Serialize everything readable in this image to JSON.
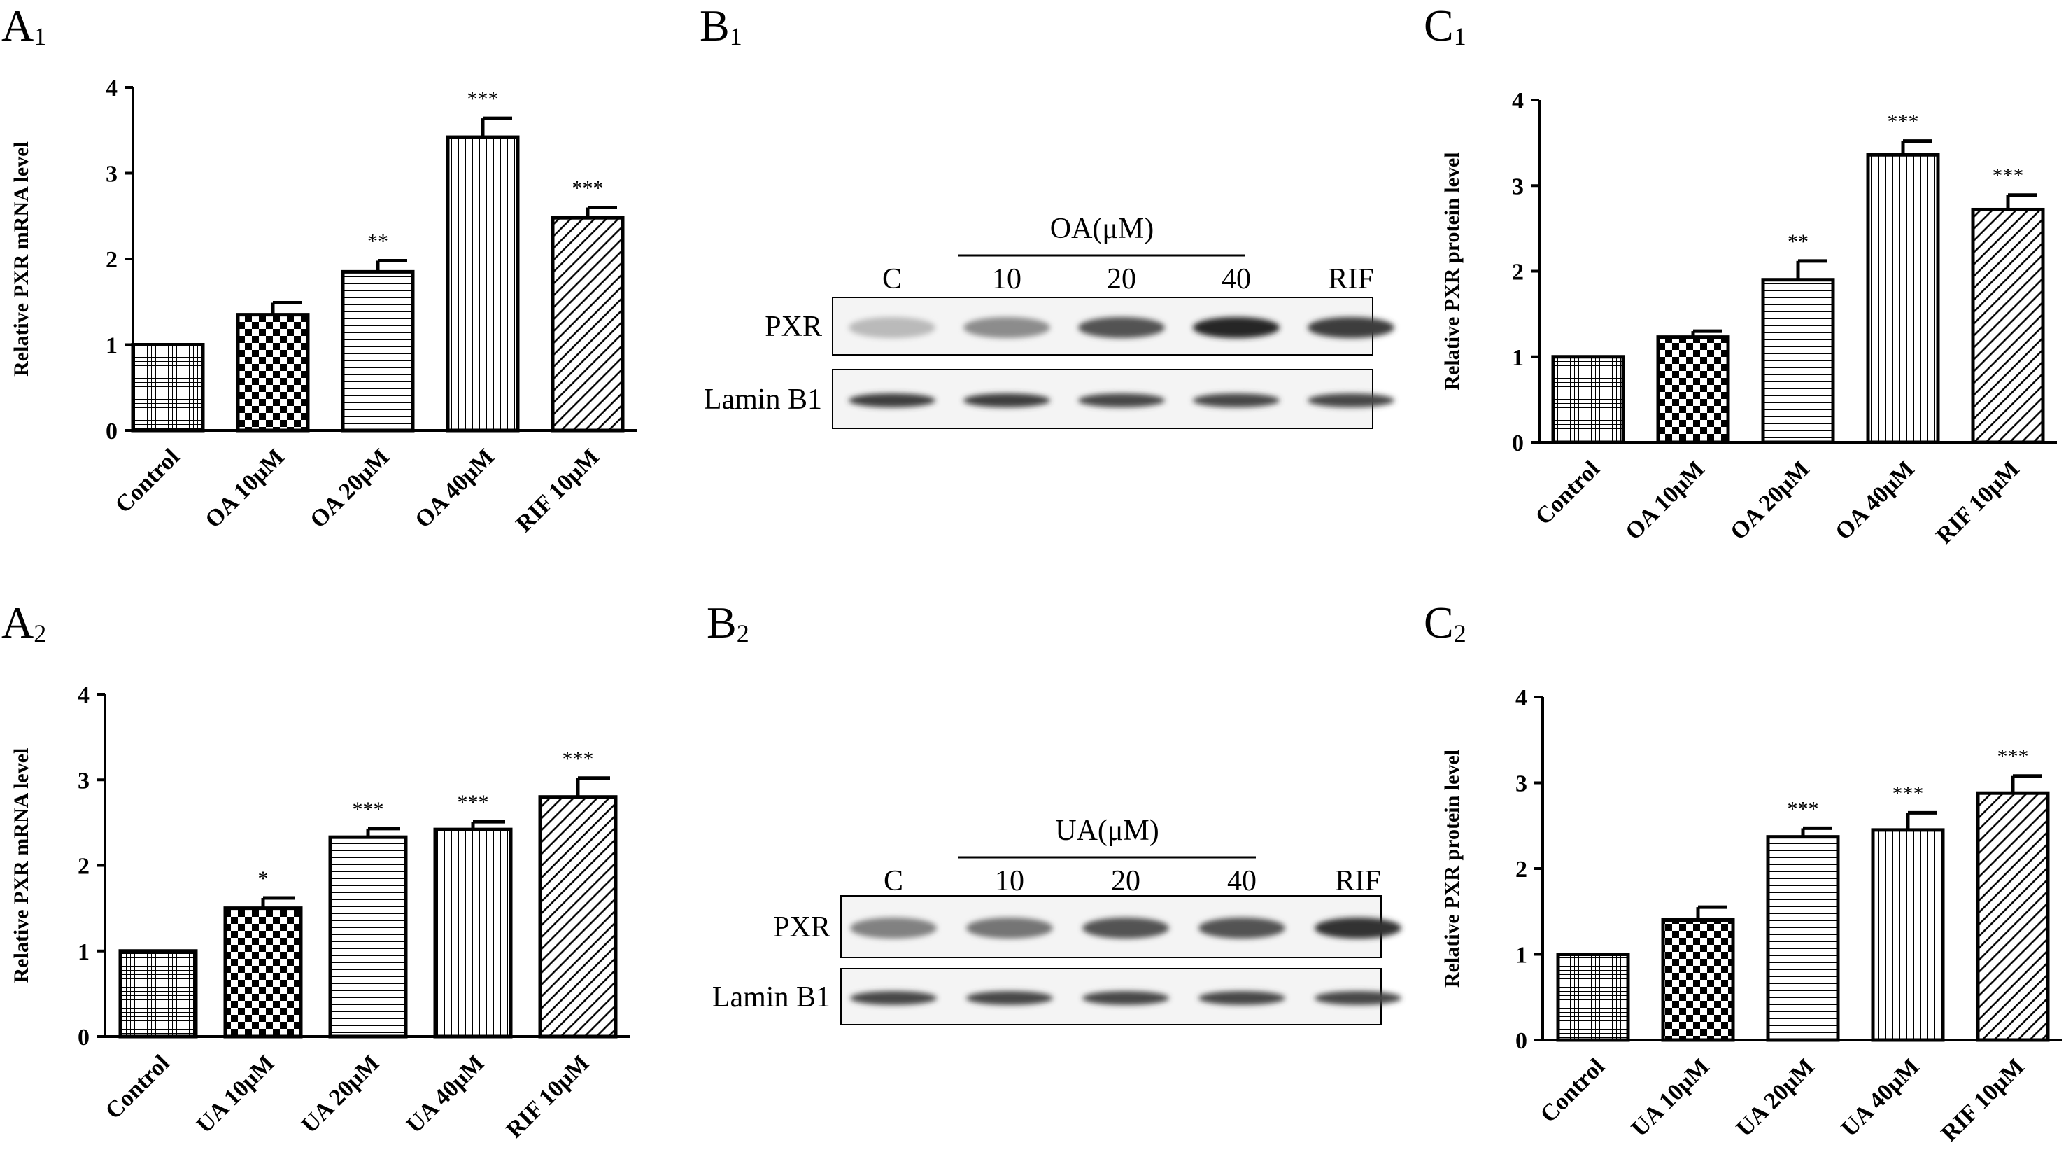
{
  "panels": {
    "a1": {
      "letter": "A",
      "sub": "1"
    },
    "a2": {
      "letter": "A",
      "sub": "2"
    },
    "b1": {
      "letter": "B",
      "sub": "1"
    },
    "b2": {
      "letter": "B",
      "sub": "2"
    },
    "c1": {
      "letter": "C",
      "sub": "1"
    },
    "c2": {
      "letter": "C",
      "sub": "2"
    }
  },
  "colors": {
    "bar_stroke": "#000000",
    "background": "#ffffff"
  },
  "chart_data": [
    {
      "id": "A1",
      "type": "bar",
      "ylabel": "Relative PXR mRNA level",
      "ylim": [
        0,
        4
      ],
      "yticks": [
        0,
        1,
        2,
        3,
        4
      ],
      "categories": [
        "Control",
        "OA 10μM",
        "OA 20μM",
        "OA 40μM",
        "RIF 10μM"
      ],
      "values": [
        1.0,
        1.35,
        1.85,
        3.42,
        2.48
      ],
      "errors": [
        0,
        0.14,
        0.13,
        0.22,
        0.12
      ],
      "significance": [
        "",
        "",
        "**",
        "***",
        "***"
      ],
      "patterns": [
        "grid",
        "checker",
        "hlines",
        "vlines",
        "diag"
      ]
    },
    {
      "id": "C1",
      "type": "bar",
      "ylabel": "Relative PXR protein level",
      "ylim": [
        0,
        4
      ],
      "yticks": [
        0,
        1,
        2,
        3,
        4
      ],
      "categories": [
        "Control",
        "OA 10μM",
        "OA 20μM",
        "OA 40μM",
        "RIF 10μM"
      ],
      "values": [
        1.0,
        1.23,
        1.9,
        3.36,
        2.72
      ],
      "errors": [
        0,
        0.07,
        0.22,
        0.16,
        0.17
      ],
      "significance": [
        "",
        "",
        "**",
        "***",
        "***"
      ],
      "patterns": [
        "grid",
        "checker",
        "hlines",
        "vlines",
        "diag"
      ]
    },
    {
      "id": "A2",
      "type": "bar",
      "ylabel": "Relative PXR mRNA level",
      "ylim": [
        0,
        4
      ],
      "yticks": [
        0,
        1,
        2,
        3,
        4
      ],
      "categories": [
        "Control",
        "UA 10μM",
        "UA 20μM",
        "UA 40μM",
        "RIF 10μM"
      ],
      "values": [
        1.0,
        1.5,
        2.33,
        2.42,
        2.8
      ],
      "errors": [
        0,
        0.12,
        0.1,
        0.09,
        0.22
      ],
      "significance": [
        "",
        "*",
        "***",
        "***",
        "***"
      ],
      "patterns": [
        "grid",
        "checker",
        "hlines",
        "vlines",
        "diag"
      ]
    },
    {
      "id": "C2",
      "type": "bar",
      "ylabel": "Relative PXR protein level",
      "ylim": [
        0,
        4
      ],
      "yticks": [
        0,
        1,
        2,
        3,
        4
      ],
      "categories": [
        "Control",
        "UA 10μM",
        "UA 20μM",
        "UA 40μM",
        "RIF 10μM"
      ],
      "values": [
        1.0,
        1.4,
        2.37,
        2.45,
        2.88
      ],
      "errors": [
        0,
        0.15,
        0.1,
        0.2,
        0.2
      ],
      "significance": [
        "",
        "",
        "***",
        "***",
        "***"
      ],
      "patterns": [
        "grid",
        "checker",
        "hlines",
        "vlines",
        "diag"
      ]
    }
  ],
  "blots": {
    "b1": {
      "group_label": "OA(μM)",
      "lanes": [
        "C",
        "10",
        "20",
        "40",
        "RIF"
      ],
      "rows": [
        "PXR",
        "Lamin B1"
      ],
      "pxr_intensity": [
        0.3,
        0.5,
        0.75,
        0.95,
        0.85
      ],
      "lamin_intensity": [
        0.85,
        0.85,
        0.8,
        0.8,
        0.8
      ]
    },
    "b2": {
      "group_label": "UA(μM)",
      "lanes": [
        "C",
        "10",
        "20",
        "40",
        "RIF"
      ],
      "rows": [
        "PXR",
        "Lamin B1"
      ],
      "pxr_intensity": [
        0.55,
        0.6,
        0.75,
        0.75,
        0.9
      ],
      "lamin_intensity": [
        0.8,
        0.8,
        0.8,
        0.8,
        0.8
      ]
    }
  }
}
